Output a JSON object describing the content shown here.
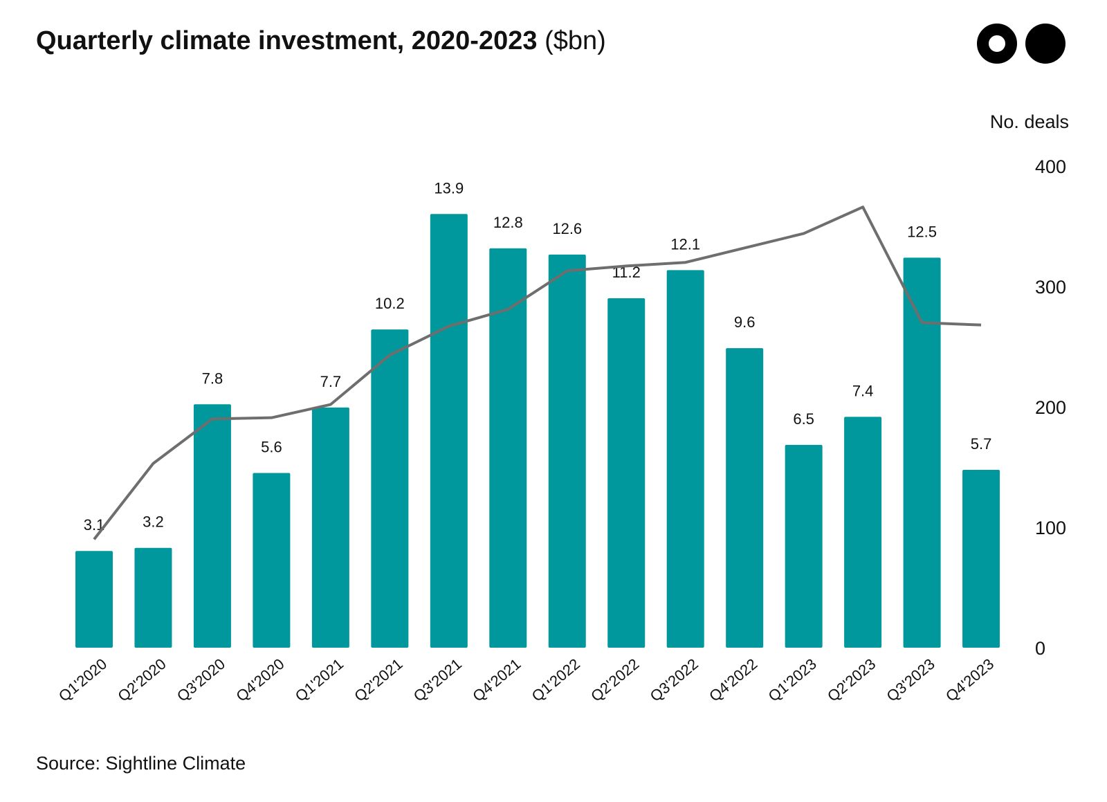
{
  "header": {
    "title_bold": "Quarterly climate investment, 2020-2023",
    "title_unit": "($bn)",
    "logo_icon": "two-circles-logo-icon"
  },
  "footer": {
    "source": "Source: Sightline Climate"
  },
  "colors": {
    "bars": "#00989C",
    "line": "#6E6E6E",
    "text": "#111111"
  },
  "chart_data": {
    "type": "bar",
    "categories": [
      "Q1'2020",
      "Q2'2020",
      "Q3'2020",
      "Q4'2020",
      "Q1'2021",
      "Q2'2021",
      "Q3'2021",
      "Q4'2021",
      "Q1'2022",
      "Q2'2022",
      "Q3'2022",
      "Q4'2022",
      "Q1'2023",
      "Q2'2023",
      "Q3'2023",
      "Q4'2023"
    ],
    "bar_labels": [
      "3.1",
      "3.2",
      "7.8",
      "5.6",
      "7.7",
      "10.2",
      "13.9",
      "12.8",
      "12.6",
      "11.2",
      "12.1",
      "9.6",
      "6.5",
      "7.4",
      "12.5",
      "5.7"
    ],
    "series": [
      {
        "type": "bar",
        "values": [
          3.1,
          3.2,
          7.8,
          5.6,
          7.7,
          10.2,
          13.9,
          12.8,
          12.6,
          11.2,
          12.1,
          9.6,
          6.5,
          7.4,
          12.5,
          5.7
        ]
      },
      {
        "type": "line",
        "axis": "right",
        "values": [
          90,
          153,
          190,
          191,
          202,
          243,
          267,
          281,
          313,
          317,
          320,
          332,
          344,
          366,
          270,
          268
        ]
      }
    ],
    "y_left_range": [
      0,
      15.17
    ],
    "y_right": {
      "label": "No. deals",
      "range": [
        0,
        400
      ],
      "ticks": [
        0,
        100,
        200,
        300,
        400
      ]
    },
    "grid": false,
    "legend": "none"
  }
}
